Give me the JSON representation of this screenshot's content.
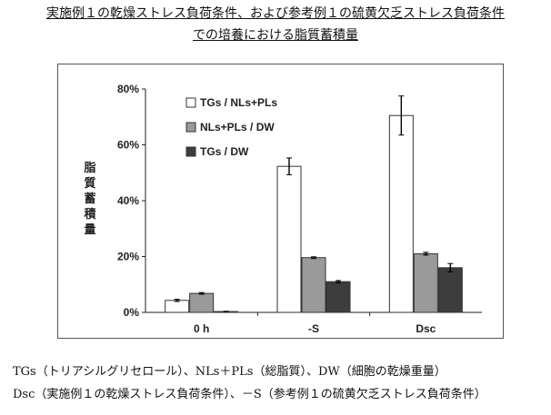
{
  "heading": {
    "line1": "実施例１の乾燥ストレス負荷条件、および参考例１の硫黄欠乏ストレス負荷条件",
    "line2": "での培養における脂質蓄積量"
  },
  "chart_data": {
    "type": "bar",
    "ylabel": "脂質蓄積量",
    "ylim": [
      0,
      80
    ],
    "y_ticks": [
      0,
      20,
      40,
      60,
      80
    ],
    "y_tick_labels": [
      "0%",
      "20%",
      "40%",
      "60%",
      "80%"
    ],
    "categories": [
      "0 h",
      "-S",
      "Dsc"
    ],
    "legend_position": "upper-left",
    "grid": false,
    "series": [
      {
        "name": "TGs / NLs+PLs",
        "color": "#ffffff",
        "values": [
          4.3,
          52.3,
          70.5
        ],
        "errors": [
          0.4,
          3.0,
          7.0
        ]
      },
      {
        "name": "NLs+PLs / DW",
        "color": "#9a9a9a",
        "values": [
          6.8,
          19.6,
          21.0
        ],
        "errors": [
          0.3,
          0.3,
          0.5
        ]
      },
      {
        "name": "TGs / DW",
        "color": "#3d3d3d",
        "values": [
          0.3,
          11.0,
          16.0
        ],
        "errors": [
          0.1,
          0.4,
          1.5
        ]
      }
    ]
  },
  "footnotes": {
    "line1": "TGs（トリアシルグリセロール）、NLs＋PLs（総脂質）、DW（細胞の乾燥重量）",
    "line2": "Dsc（実施例１の乾燥ストレス負荷条件）、－S（参考例１の硫黄欠乏ストレス負荷条件）"
  }
}
